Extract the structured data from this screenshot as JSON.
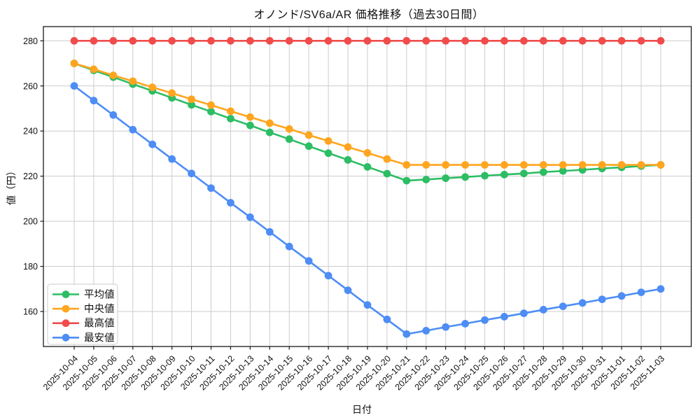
{
  "chart_data": {
    "type": "line",
    "title": "オノンド/SV6a/AR 価格推移（過去30日間）",
    "xlabel": "日付",
    "ylabel": "値（円）",
    "grid": true,
    "legend_position": "lower left",
    "ylim": [
      144.5,
      286.5
    ],
    "yticks": [
      160,
      180,
      200,
      220,
      240,
      260,
      280
    ],
    "x": [
      "2025-10-04",
      "2025-10-05",
      "2025-10-06",
      "2025-10-07",
      "2025-10-08",
      "2025-10-09",
      "2025-10-10",
      "2025-10-11",
      "2025-10-12",
      "2025-10-13",
      "2025-10-14",
      "2025-10-15",
      "2025-10-16",
      "2025-10-17",
      "2025-10-18",
      "2025-10-19",
      "2025-10-20",
      "2025-10-21",
      "2025-10-22",
      "2025-10-23",
      "2025-10-24",
      "2025-10-25",
      "2025-10-26",
      "2025-10-27",
      "2025-10-28",
      "2025-10-29",
      "2025-10-30",
      "2025-10-31",
      "2025-11-01",
      "2025-11-02",
      "2025-11-03"
    ],
    "series": [
      {
        "name": "平均値",
        "color": "#2dbd64",
        "values": [
          270,
          266.9,
          263.9,
          260.8,
          257.8,
          254.7,
          251.6,
          248.6,
          245.5,
          242.5,
          239.4,
          236.4,
          233.3,
          230.2,
          227.2,
          224.1,
          221.1,
          218,
          218.5,
          219.1,
          219.6,
          220.2,
          220.7,
          221.2,
          221.8,
          222.3,
          222.8,
          223.4,
          223.9,
          224.5,
          225
        ]
      },
      {
        "name": "中央値",
        "color": "#ffa51f",
        "values": [
          270,
          267.4,
          264.7,
          262.1,
          259.4,
          256.8,
          254.1,
          251.5,
          248.8,
          246.2,
          243.5,
          240.9,
          238.2,
          235.6,
          232.9,
          230.3,
          227.6,
          225,
          225,
          225,
          225,
          225,
          225,
          225,
          225,
          225,
          225,
          225,
          225,
          225,
          225
        ]
      },
      {
        "name": "最高値",
        "color": "#f04c4c",
        "values": [
          280,
          280,
          280,
          280,
          280,
          280,
          280,
          280,
          280,
          280,
          280,
          280,
          280,
          280,
          280,
          280,
          280,
          280,
          280,
          280,
          280,
          280,
          280,
          280,
          280,
          280,
          280,
          280,
          280,
          280,
          280
        ]
      },
      {
        "name": "最安値",
        "color": "#4d8df5",
        "values": [
          260,
          253.5,
          247.1,
          240.6,
          234.1,
          227.6,
          221.2,
          214.7,
          208.2,
          201.8,
          195.3,
          188.8,
          182.4,
          175.9,
          169.4,
          162.9,
          156.5,
          150,
          151.5,
          153.1,
          154.6,
          156.2,
          157.7,
          159.2,
          160.8,
          162.3,
          163.8,
          165.4,
          166.9,
          168.5,
          170
        ]
      }
    ],
    "series_semantic_names": [
      "series-average",
      "series-median",
      "series-max",
      "series-min"
    ],
    "axis_color": "#1a1a1a",
    "grid_color": "#cccccc",
    "legend_border_color": "#cccccc"
  }
}
